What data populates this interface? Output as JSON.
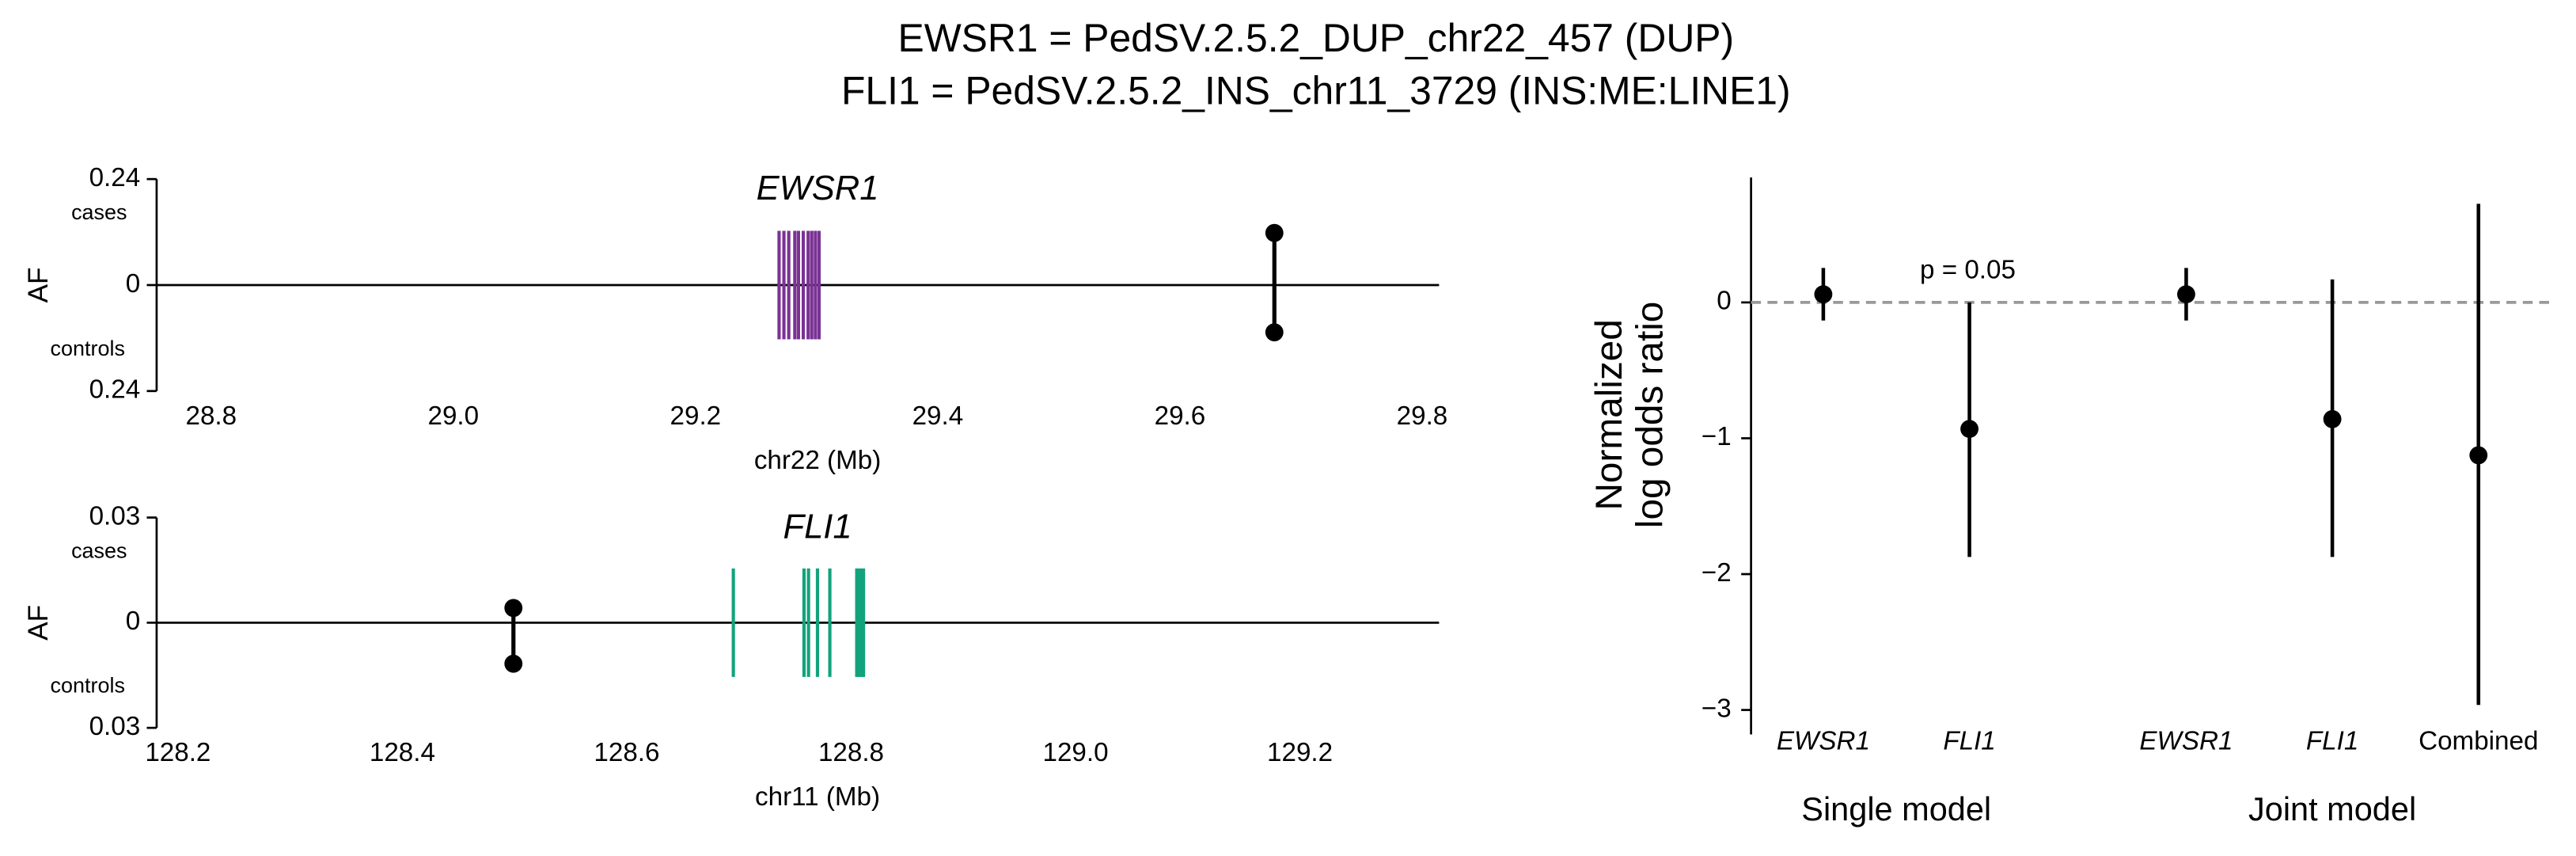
{
  "title": [
    "EWSR1 = PedSV.2.5.2_DUP_chr22_457 (DUP)",
    "FLI1 = PedSV.2.5.2_INS_chr11_3729 (INS:ME:LINE1)"
  ],
  "chart_data": [
    {
      "type": "locus",
      "title": "EWSR1",
      "xlabel": "chr22 (Mb)",
      "ylabel": "AF",
      "case_label": "cases",
      "control_label": "controls",
      "xlim": [
        28.755,
        29.814
      ],
      "xticks": [
        28.8,
        {
          "value": 29,
          "label": "29.0"
        },
        29.2,
        29.4,
        29.6,
        29.8
      ],
      "ylim": [
        -0.24,
        0.24
      ],
      "yticks": [
        0.24,
        0,
        {
          "value": -0.24,
          "label": "0.24"
        }
      ],
      "gene_color": "#7b3294",
      "exons": [
        29.269,
        29.273,
        29.277,
        29.282,
        29.285,
        29.289,
        29.293,
        29.296,
        29.299,
        29.302
      ],
      "sv": {
        "position": 29.678,
        "cases": 0.118,
        "controls": -0.107
      }
    },
    {
      "type": "locus",
      "title": "FLI1",
      "xlabel": "chr11 (Mb)",
      "ylabel": "AF",
      "case_label": "cases",
      "control_label": "controls",
      "xlim": [
        128.181,
        129.324
      ],
      "xticks": [
        128.2,
        128.4,
        128.6,
        128.8,
        {
          "value": 129,
          "label": "129.0"
        },
        129.2
      ],
      "ylim": [
        -0.03,
        0.03
      ],
      "yticks": [
        0.03,
        0,
        {
          "value": -0.03,
          "label": "0.03"
        }
      ],
      "gene_color": "#13a37c",
      "exons": [
        128.695,
        128.758,
        128.762,
        128.77,
        128.781,
        128.805,
        128.807,
        128.809,
        128.811
      ],
      "sv": {
        "position": 128.499,
        "cases": 0.0042,
        "controls": -0.0117
      }
    },
    {
      "type": "forest",
      "ylabel": [
        "Normalized",
        "log odds ratio"
      ],
      "annotation": "p = 0.05",
      "ylim": [
        -3.18,
        0.92
      ],
      "yticks": [
        {
          "value": -3,
          "label": "−3"
        },
        {
          "value": -2,
          "label": "−2"
        },
        {
          "value": -1,
          "label": "−1"
        },
        0
      ],
      "reference": 0,
      "color": "#000000",
      "groups": [
        {
          "name": "Single model",
          "categories": [
            "EWSR1",
            "FLI1"
          ],
          "values": [
            0.06,
            -0.931
          ],
          "lower": [
            -0.133,
            -1.874
          ],
          "upper": [
            0.254,
            0
          ]
        },
        {
          "name": "Joint model",
          "categories": [
            "EWSR1",
            "FLI1",
            "Combined"
          ],
          "values": [
            0.06,
            -0.859,
            -1.125
          ],
          "lower": [
            -0.133,
            -1.874,
            -2.963
          ],
          "upper": [
            0.254,
            0.169,
            0.726
          ]
        }
      ]
    }
  ]
}
